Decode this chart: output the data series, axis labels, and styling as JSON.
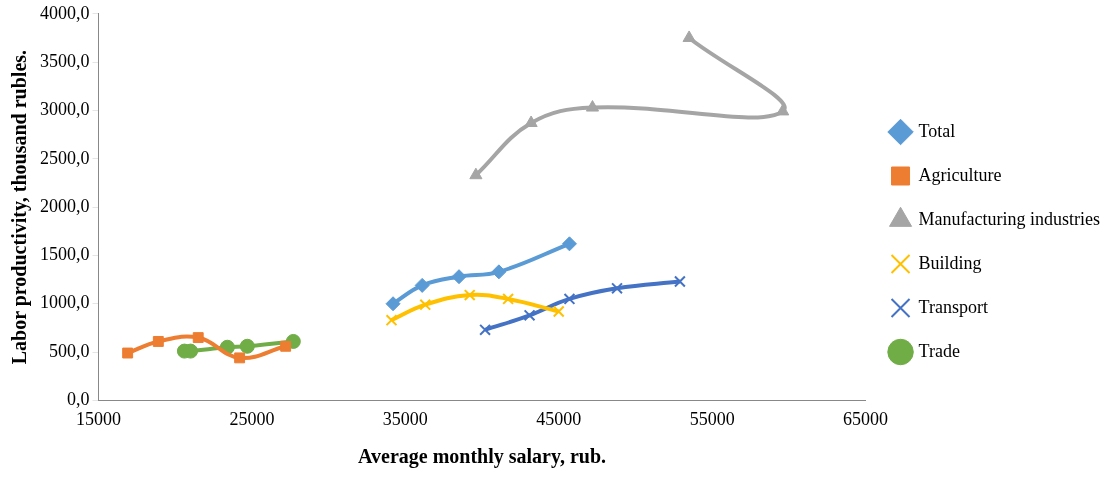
{
  "chart_data": {
    "type": "line",
    "xlabel": "Average monthly salary, rub.",
    "ylabel": "Labor productivity, thousand rubles.",
    "xlim": [
      15000,
      65000
    ],
    "xticks": [
      15000,
      25000,
      35000,
      45000,
      55000,
      65000
    ],
    "ylim": [
      0,
      4000
    ],
    "yticks": [
      {
        "value": 0,
        "label": "0,0"
      },
      {
        "value": 500,
        "label": "500,0"
      },
      {
        "value": 1000,
        "label": "1000,0"
      },
      {
        "value": 1500,
        "label": "1500,0"
      },
      {
        "value": 2000,
        "label": "2000,0"
      },
      {
        "value": 2500,
        "label": "2500,0"
      },
      {
        "value": 3000,
        "label": "3000,0"
      },
      {
        "value": 3500,
        "label": "3500,0"
      },
      {
        "value": 4000,
        "label": "4000,0"
      }
    ],
    "grid": false,
    "legend": "right",
    "series": [
      {
        "name": "Total",
        "color": "#5b9bd5",
        "marker": "diamond",
        "x": [
          34200,
          36100,
          38500,
          41100,
          45700
        ],
        "values": [
          1000,
          1190,
          1280,
          1330,
          1620
        ]
      },
      {
        "name": "Agriculture",
        "color": "#ed7d31",
        "marker": "square",
        "x": [
          16900,
          18900,
          21500,
          24200,
          27200
        ],
        "values": [
          490,
          610,
          650,
          440,
          560
        ]
      },
      {
        "name": "Manufacturing industries",
        "color": "#a5a5a5",
        "marker": "triangle",
        "x": [
          39600,
          43200,
          47200,
          59600,
          53500
        ],
        "values": [
          2330,
          2870,
          3030,
          2990,
          3750
        ]
      },
      {
        "name": "Building",
        "color": "#ffc000",
        "marker": "cross",
        "x": [
          34100,
          36300,
          39200,
          41700,
          45000
        ],
        "values": [
          830,
          990,
          1090,
          1050,
          920
        ]
      },
      {
        "name": "Transport",
        "color": "#4472c4",
        "marker": "cross",
        "x": [
          40200,
          43100,
          45700,
          48800,
          52900
        ],
        "values": [
          730,
          880,
          1050,
          1160,
          1230
        ]
      },
      {
        "name": "Trade",
        "color": "#70ad47",
        "marker": "circle",
        "x": [
          20600,
          21000,
          23400,
          24700,
          27700
        ],
        "values": [
          510,
          510,
          550,
          560,
          610
        ]
      }
    ]
  }
}
